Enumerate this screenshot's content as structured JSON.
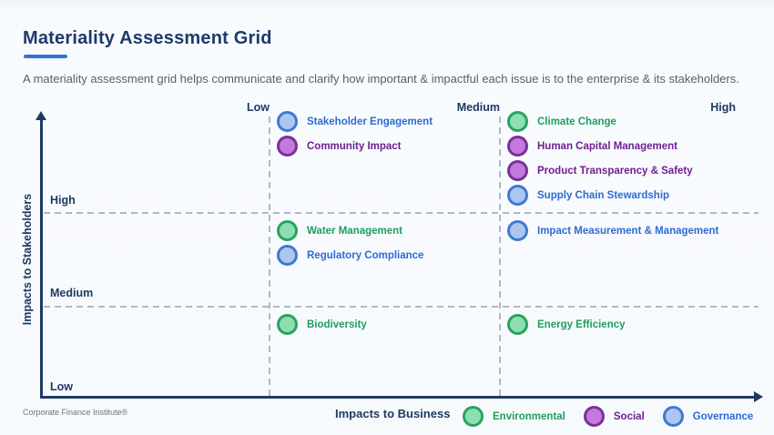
{
  "header": {
    "title": "Materiality Assessment Grid",
    "subtitle": "A materiality assessment grid helps communicate and clarify how important & impactful each issue is to the enterprise & its stakeholders."
  },
  "footer": {
    "brand": "Corporate Finance Institute®"
  },
  "axes": {
    "x_label": "Impacts to Business",
    "y_label": "Impacts to Stakeholders",
    "x_ticks": [
      "Low",
      "Medium",
      "High"
    ],
    "y_ticks": [
      "High",
      "Medium",
      "Low"
    ]
  },
  "colors": {
    "accent_blue": "#2e75d4",
    "navy": "#1f3a61",
    "gridline_gray": "#b2b8c1",
    "background": "#f7fafd"
  },
  "categories": {
    "environmental": {
      "label": "Environmental",
      "fill": "#8fdeb2",
      "border": "#29a35f",
      "text": "#1f9e5d"
    },
    "social": {
      "label": "Social",
      "fill": "#c27ade",
      "border": "#7b2f97",
      "text": "#701f8f"
    },
    "governance": {
      "label": "Governance",
      "fill": "#adc6ef",
      "border": "#4079d2",
      "text": "#2e6bd4"
    }
  },
  "chart_data": {
    "type": "scatter",
    "title": "Materiality Assessment Grid",
    "xlabel": "Impacts to Business",
    "ylabel": "Impacts to Stakeholders",
    "x_zones": [
      "Low",
      "Medium",
      "High"
    ],
    "y_zones": [
      "Low",
      "Medium",
      "High"
    ],
    "legend": [
      "environmental",
      "social",
      "governance"
    ],
    "legend_position": "bottom-right",
    "grid": "dashed zone boundaries",
    "points": [
      {
        "label": "Stakeholder Engagement",
        "category": "governance",
        "business_zone": "low-medium",
        "stakeholder_zone": "high"
      },
      {
        "label": "Community Impact",
        "category": "social",
        "business_zone": "low-medium",
        "stakeholder_zone": "high"
      },
      {
        "label": "Climate Change",
        "category": "environmental",
        "business_zone": "medium-high",
        "stakeholder_zone": "high"
      },
      {
        "label": "Human Capital Management",
        "category": "social",
        "business_zone": "medium-high",
        "stakeholder_zone": "high"
      },
      {
        "label": "Product Transparency & Safety",
        "category": "social",
        "business_zone": "medium-high",
        "stakeholder_zone": "high"
      },
      {
        "label": "Supply Chain Stewardship",
        "category": "governance",
        "business_zone": "medium-high",
        "stakeholder_zone": "high"
      },
      {
        "label": "Water Management",
        "category": "environmental",
        "business_zone": "low-medium",
        "stakeholder_zone": "medium-high"
      },
      {
        "label": "Regulatory Compliance",
        "category": "governance",
        "business_zone": "low-medium",
        "stakeholder_zone": "medium-high"
      },
      {
        "label": "Impact Measurement & Management",
        "category": "governance",
        "business_zone": "medium-high",
        "stakeholder_zone": "medium-high"
      },
      {
        "label": "Biodiversity",
        "category": "environmental",
        "business_zone": "low-medium",
        "stakeholder_zone": "low-medium"
      },
      {
        "label": "Energy Efficiency",
        "category": "environmental",
        "business_zone": "medium-high",
        "stakeholder_zone": "low-medium"
      }
    ]
  }
}
